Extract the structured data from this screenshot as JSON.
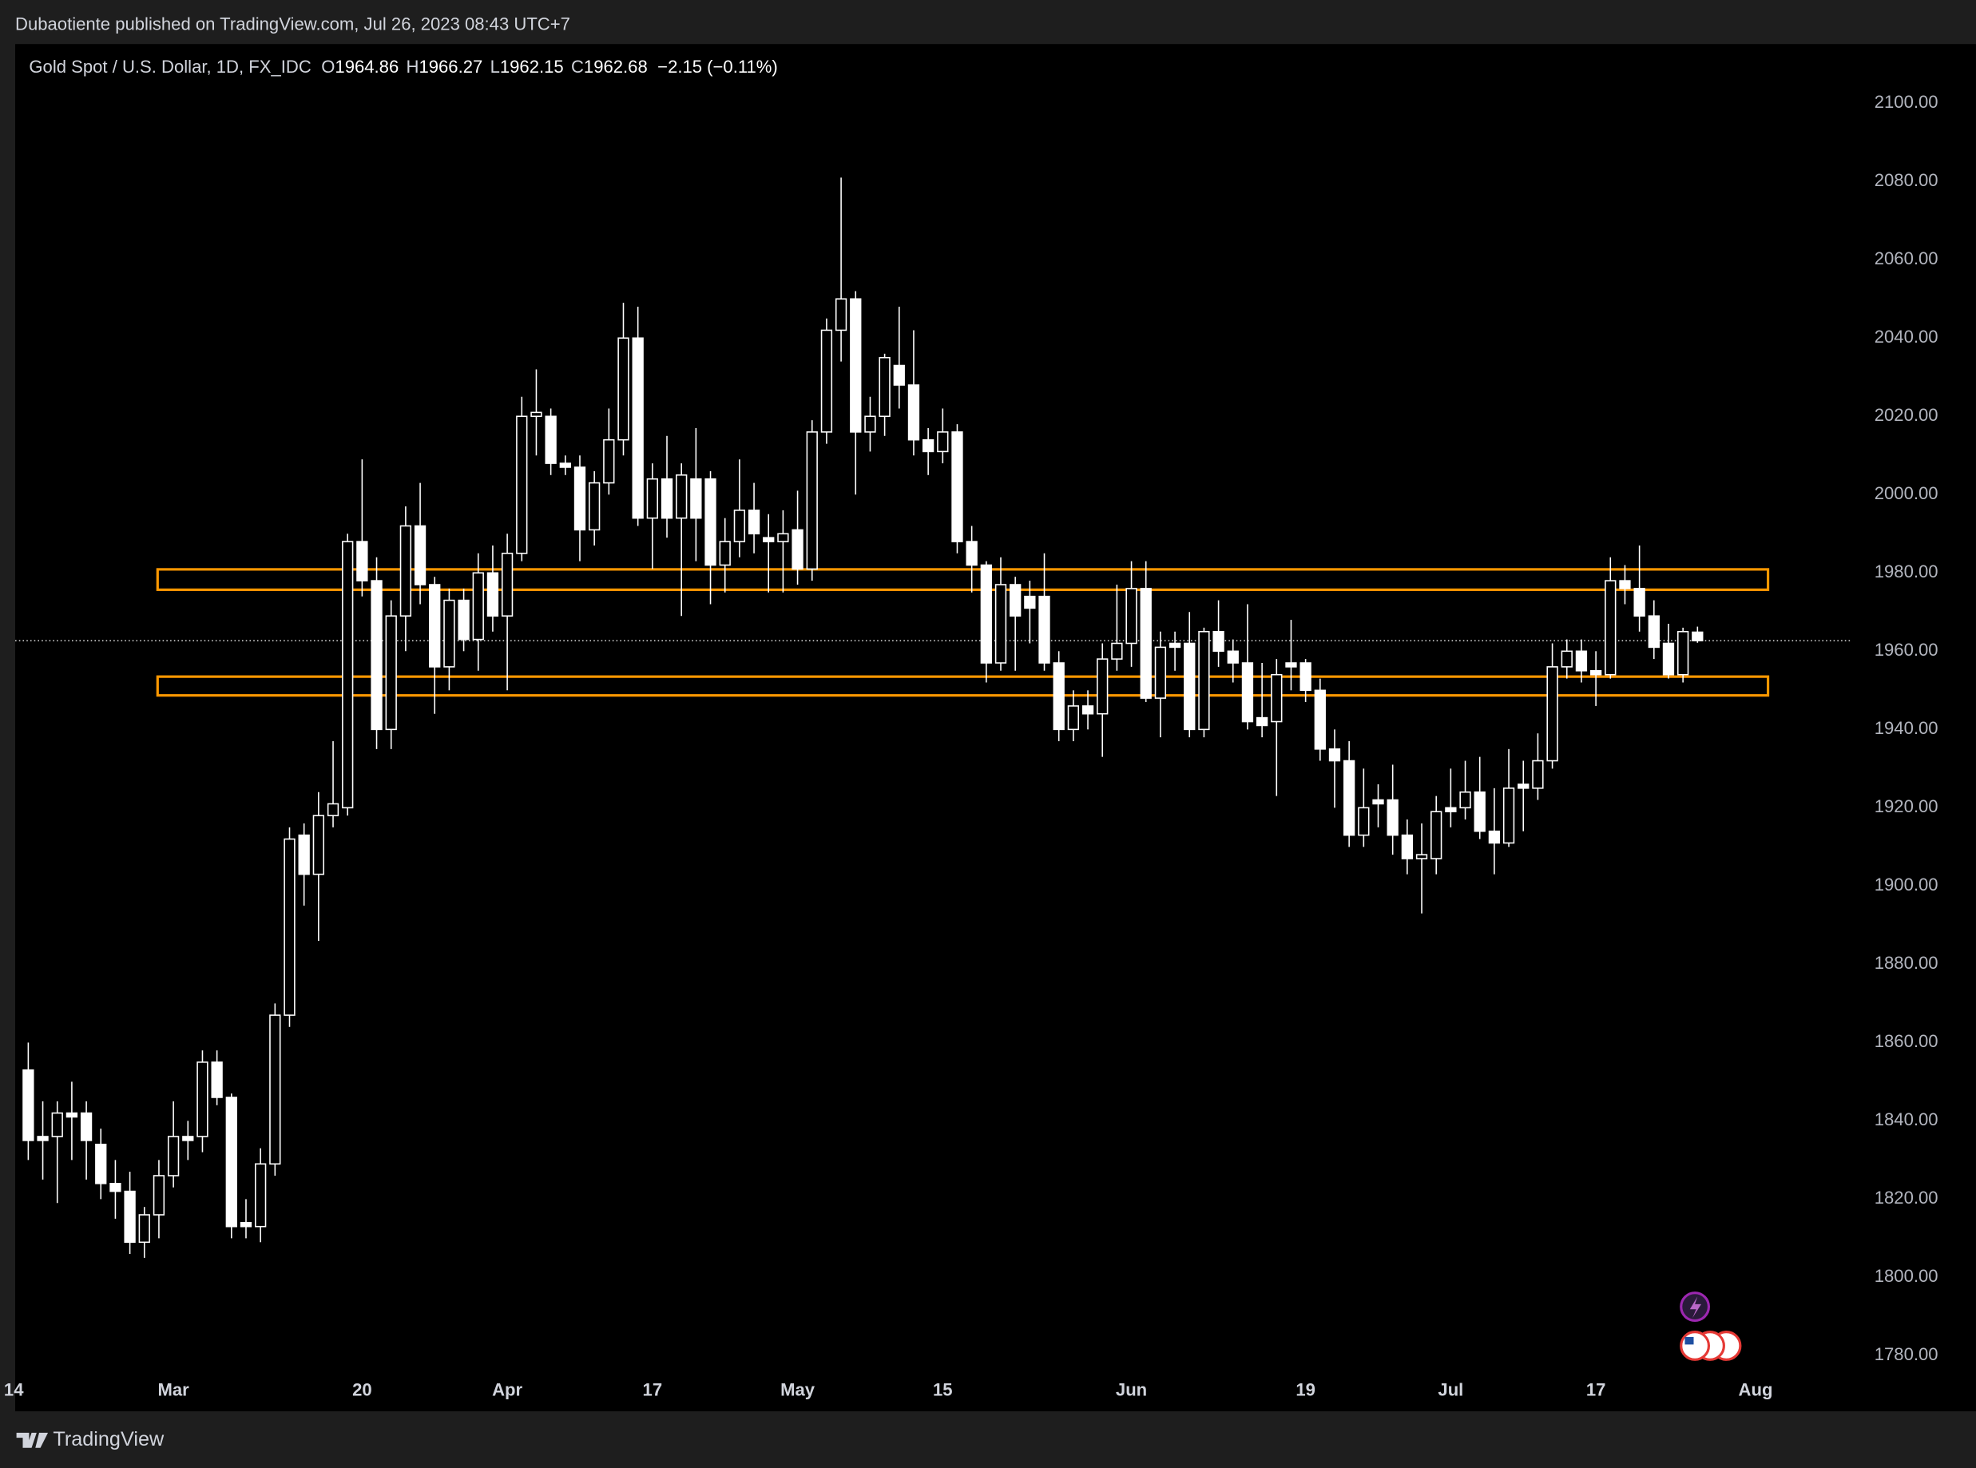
{
  "header": {
    "text": "Dubaotiente published on TradingView.com, Jul 26, 2023 08:43 UTC+7"
  },
  "footer": {
    "brand": "TradingView"
  },
  "chart_data": {
    "type": "candlestick",
    "legend": {
      "symbol": "Gold Spot / U.S. Dollar, 1D, FX_IDC",
      "open_label": "O",
      "high_label": "H",
      "low_label": "L",
      "close_label": "C",
      "change": "−2.15 (−0.11%)"
    },
    "open": [
      1853,
      1836,
      1836,
      1842,
      1842,
      1834,
      1824,
      1822,
      1809,
      1816,
      1826,
      1836,
      1836,
      1855,
      1846,
      1814,
      1813,
      1829,
      1867,
      1913,
      1903,
      1918,
      1920,
      1988,
      1978,
      1940,
      1969,
      1992,
      1977,
      1956,
      1973,
      1963,
      1980,
      1969,
      1985,
      2020,
      2020,
      2008,
      2007,
      1991,
      2003,
      2014,
      2040,
      1994,
      2004,
      1994,
      2004,
      2004,
      1982,
      1988,
      1996,
      1989,
      1988,
      1991,
      1981,
      2016,
      2042,
      2050,
      2016,
      2020,
      2033,
      2028,
      2014,
      2011,
      2016,
      1988,
      1982,
      1957,
      1977,
      1974,
      1974,
      1957,
      1940,
      1946,
      1944,
      1958,
      1962,
      1976,
      1948,
      1962,
      1962,
      1940,
      1965,
      1960,
      1957,
      1943,
      1942,
      1957,
      1957,
      1950,
      1935,
      1932,
      1913,
      1922,
      1922,
      1913,
      1907,
      1907,
      1920,
      1920,
      1924,
      1914,
      1911,
      1926,
      1925,
      1932,
      1956,
      1960,
      1955,
      1954,
      1978,
      1976,
      1969,
      1962,
      1954,
      1964.86
    ],
    "high": [
      1860,
      1845,
      1845,
      1850,
      1845,
      1838,
      1830,
      1827,
      1818,
      1830,
      1845,
      1840,
      1858,
      1858,
      1847,
      1820,
      1833,
      1870,
      1915,
      1916,
      1924,
      1937,
      1990,
      2009,
      1984,
      1973,
      1997,
      2003,
      1979,
      1976,
      1976,
      1985,
      1987,
      1990,
      2025,
      2032,
      2022,
      2010,
      2010,
      2006,
      2022,
      2049,
      2048,
      2008,
      2015,
      2008,
      2017,
      2006,
      1994,
      2009,
      2003,
      1995,
      1996,
      2001,
      2019,
      2045,
      2081,
      2052,
      2025,
      2036,
      2048,
      2042,
      2017,
      2022,
      2018,
      1992,
      1983,
      1984,
      1979,
      1978,
      1985,
      1960,
      1950,
      1950,
      1962,
      1977,
      1983,
      1983,
      1965,
      1965,
      1970,
      1966,
      1973,
      1963,
      1972,
      1957,
      1958,
      1968,
      1958,
      1953,
      1940,
      1937,
      1930,
      1926,
      1931,
      1917,
      1916,
      1923,
      1930,
      1932,
      1933,
      1925,
      1935,
      1932,
      1939,
      1962,
      1963,
      1963,
      1960,
      1984,
      1982,
      1987,
      1973,
      1967,
      1966,
      1966.27
    ],
    "low": [
      1830,
      1825,
      1819,
      1830,
      1825,
      1820,
      1815,
      1806,
      1805,
      1810,
      1823,
      1830,
      1832,
      1844,
      1810,
      1810,
      1809,
      1826,
      1864,
      1895,
      1886,
      1915,
      1918,
      1974,
      1935,
      1935,
      1960,
      1972,
      1944,
      1950,
      1960,
      1955,
      1965,
      1950,
      1983,
      2010,
      2005,
      2005,
      1983,
      1987,
      2000,
      2010,
      1992,
      1981,
      1989,
      1969,
      1983,
      1972,
      1975,
      1984,
      1985,
      1975,
      1975,
      1977,
      1978,
      2013,
      2034,
      2000,
      2011,
      2015,
      2022,
      2010,
      2005,
      2008,
      1985,
      1975,
      1952,
      1955,
      1955,
      1962,
      1955,
      1937,
      1937,
      1940,
      1933,
      1955,
      1956,
      1947,
      1938,
      1955,
      1938,
      1938,
      1956,
      1952,
      1940,
      1938,
      1923,
      1950,
      1947,
      1932,
      1920,
      1910,
      1910,
      1915,
      1908,
      1903,
      1893,
      1903,
      1915,
      1917,
      1912,
      1903,
      1910,
      1914,
      1922,
      1930,
      1953,
      1952,
      1946,
      1953,
      1972,
      1965,
      1958,
      1953,
      1952,
      1962.15
    ],
    "close": [
      1835,
      1835,
      1842,
      1841,
      1835,
      1824,
      1822,
      1809,
      1816,
      1826,
      1836,
      1835,
      1855,
      1846,
      1813,
      1813,
      1829,
      1867,
      1912,
      1903,
      1918,
      1921,
      1988,
      1978,
      1940,
      1969,
      1992,
      1977,
      1956,
      1973,
      1963,
      1980,
      1969,
      1985,
      2020,
      2021,
      2008,
      2007,
      1991,
      2003,
      2014,
      2040,
      1994,
      2004,
      1994,
      2005,
      1994,
      1982,
      1988,
      1996,
      1990,
      1988,
      1990,
      1981,
      2016,
      2042,
      2050,
      2016,
      2020,
      2035,
      2028,
      2014,
      2011,
      2016,
      1988,
      1982,
      1957,
      1977,
      1969,
      1971,
      1957,
      1940,
      1946,
      1944,
      1958,
      1962,
      1976,
      1948,
      1961,
      1961,
      1940,
      1965,
      1960,
      1957,
      1942,
      1941,
      1954,
      1956,
      1950,
      1935,
      1932,
      1913,
      1920,
      1921,
      1913,
      1907,
      1908,
      1919,
      1919,
      1924,
      1914,
      1911,
      1925,
      1925,
      1932,
      1956,
      1960,
      1955,
      1954,
      1978,
      1976,
      1969,
      1961,
      1954,
      1965,
      1962.68
    ],
    "color": "#ffffff",
    "xlim": [
      -0.9,
      125.5
    ],
    "xticks": [
      {
        "value": -1,
        "label": "14"
      },
      {
        "value": 10,
        "label": "Mar"
      },
      {
        "value": 23,
        "label": "20"
      },
      {
        "value": 33,
        "label": "Apr"
      },
      {
        "value": 43,
        "label": "17"
      },
      {
        "value": 53,
        "label": "May"
      },
      {
        "value": 63,
        "label": "15"
      },
      {
        "value": 76,
        "label": "Jun"
      },
      {
        "value": 88,
        "label": "19"
      },
      {
        "value": 98,
        "label": "Jul"
      },
      {
        "value": 108,
        "label": "17"
      },
      {
        "value": 119,
        "label": "Aug"
      }
    ],
    "ylim": [
      1765.8,
      2115.1
    ],
    "yticks": [
      {
        "value": 1780,
        "label": "1780.00"
      },
      {
        "value": 1800,
        "label": "1800.00"
      },
      {
        "value": 1820,
        "label": "1820.00"
      },
      {
        "value": 1840,
        "label": "1840.00"
      },
      {
        "value": 1860,
        "label": "1860.00"
      },
      {
        "value": 1880,
        "label": "1880.00"
      },
      {
        "value": 1900,
        "label": "1900.00"
      },
      {
        "value": 1920,
        "label": "1920.00"
      },
      {
        "value": 1940,
        "label": "1940.00"
      },
      {
        "value": 1960,
        "label": "1960.00"
      },
      {
        "value": 1980,
        "label": "1980.00"
      },
      {
        "value": 2000,
        "label": "2000.00"
      },
      {
        "value": 2020,
        "label": "2020.00"
      },
      {
        "value": 2040,
        "label": "2040.00"
      },
      {
        "value": 2060,
        "label": "2060.00"
      },
      {
        "value": 2080,
        "label": "2080.00"
      },
      {
        "value": 2100,
        "label": "2100.00"
      }
    ],
    "grid": false,
    "zones": [
      {
        "top": 1980.9,
        "bottom": 1975.7
      },
      {
        "top": 1953.5,
        "bottom": 1948.7
      }
    ],
    "zone_color": "#ff9800"
  }
}
